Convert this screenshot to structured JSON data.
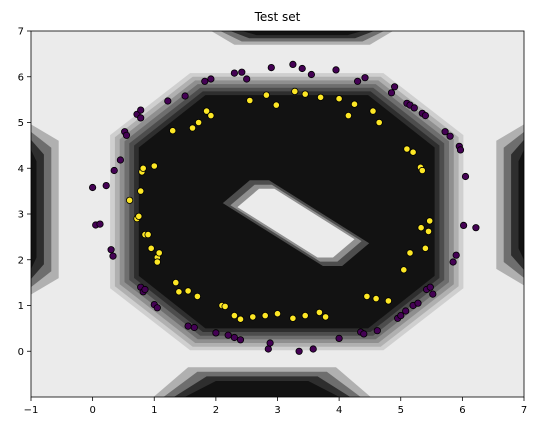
{
  "chart_data": {
    "type": "scatter",
    "title": "Test set",
    "xlabel": "",
    "ylabel": "",
    "xlim": [
      -1,
      7
    ],
    "ylim": [
      -1,
      7
    ],
    "x_ticks": [
      -1,
      0,
      1,
      2,
      3,
      4,
      5,
      6,
      7
    ],
    "y_ticks": [
      0,
      1,
      2,
      3,
      4,
      5,
      6,
      7
    ],
    "grid": false,
    "legend": "none",
    "background": "decision-boundary-contour",
    "colors": {
      "class0": "#440154",
      "class1": "#fde725",
      "contour_levels": [
        "#ebebeb",
        "#cfcfcf",
        "#b0b0b0",
        "#8f8f8f",
        "#6e6e6e",
        "#4d4d4d",
        "#2e2e2e",
        "#121212"
      ]
    },
    "series": [
      {
        "class": 0,
        "points": [
          [
            0.0,
            3.58
          ],
          [
            0.05,
            2.76
          ],
          [
            0.12,
            2.78
          ],
          [
            0.22,
            3.62
          ],
          [
            0.3,
            2.22
          ],
          [
            0.33,
            2.08
          ],
          [
            0.35,
            3.95
          ],
          [
            0.45,
            4.18
          ],
          [
            0.52,
            4.8
          ],
          [
            0.55,
            4.72
          ],
          [
            0.72,
            5.18
          ],
          [
            0.78,
            5.27
          ],
          [
            0.78,
            5.1
          ],
          [
            0.78,
            1.4
          ],
          [
            0.82,
            1.3
          ],
          [
            0.85,
            1.35
          ],
          [
            1.0,
            1.02
          ],
          [
            1.05,
            0.95
          ],
          [
            1.22,
            5.47
          ],
          [
            1.5,
            5.58
          ],
          [
            1.55,
            0.55
          ],
          [
            1.65,
            0.52
          ],
          [
            1.82,
            5.9
          ],
          [
            1.92,
            5.95
          ],
          [
            2.0,
            0.4
          ],
          [
            2.2,
            0.35
          ],
          [
            2.3,
            0.3
          ],
          [
            2.3,
            6.08
          ],
          [
            2.4,
            0.25
          ],
          [
            2.42,
            6.1
          ],
          [
            2.5,
            5.95
          ],
          [
            2.85,
            0.05
          ],
          [
            2.88,
            0.18
          ],
          [
            2.9,
            6.2
          ],
          [
            3.25,
            6.27
          ],
          [
            3.35,
            0.0
          ],
          [
            3.4,
            6.18
          ],
          [
            3.55,
            6.05
          ],
          [
            3.58,
            0.05
          ],
          [
            3.95,
            6.15
          ],
          [
            4.0,
            0.28
          ],
          [
            4.3,
            5.9
          ],
          [
            4.35,
            0.42
          ],
          [
            4.4,
            0.38
          ],
          [
            4.42,
            5.98
          ],
          [
            4.62,
            0.45
          ],
          [
            4.85,
            5.65
          ],
          [
            4.9,
            5.78
          ],
          [
            4.95,
            0.72
          ],
          [
            5.0,
            0.78
          ],
          [
            5.08,
            0.88
          ],
          [
            5.1,
            5.42
          ],
          [
            5.15,
            5.38
          ],
          [
            5.2,
            1.0
          ],
          [
            5.22,
            5.32
          ],
          [
            5.28,
            1.05
          ],
          [
            5.35,
            5.2
          ],
          [
            5.4,
            5.15
          ],
          [
            5.42,
            1.35
          ],
          [
            5.48,
            1.4
          ],
          [
            5.52,
            1.25
          ],
          [
            5.72,
            4.8
          ],
          [
            5.8,
            4.7
          ],
          [
            5.85,
            1.95
          ],
          [
            5.9,
            2.1
          ],
          [
            5.95,
            4.48
          ],
          [
            5.97,
            4.4
          ],
          [
            6.02,
            2.75
          ],
          [
            6.05,
            3.82
          ],
          [
            6.22,
            2.7
          ]
        ]
      },
      {
        "class": 1,
        "points": [
          [
            0.6,
            3.3
          ],
          [
            0.72,
            2.9
          ],
          [
            0.75,
            2.95
          ],
          [
            0.78,
            3.5
          ],
          [
            0.8,
            3.92
          ],
          [
            0.82,
            4.0
          ],
          [
            0.85,
            2.55
          ],
          [
            0.9,
            2.55
          ],
          [
            0.95,
            2.25
          ],
          [
            1.0,
            4.05
          ],
          [
            1.05,
            2.05
          ],
          [
            1.05,
            1.95
          ],
          [
            1.08,
            2.15
          ],
          [
            1.3,
            4.82
          ],
          [
            1.35,
            1.5
          ],
          [
            1.4,
            1.3
          ],
          [
            1.55,
            1.32
          ],
          [
            1.62,
            4.88
          ],
          [
            1.7,
            1.2
          ],
          [
            1.72,
            5.0
          ],
          [
            1.85,
            5.25
          ],
          [
            1.92,
            5.15
          ],
          [
            2.1,
            1.0
          ],
          [
            2.15,
            0.98
          ],
          [
            2.3,
            0.78
          ],
          [
            2.4,
            0.7
          ],
          [
            2.55,
            5.48
          ],
          [
            2.6,
            0.75
          ],
          [
            2.8,
            0.78
          ],
          [
            2.82,
            5.6
          ],
          [
            2.98,
            5.38
          ],
          [
            3.0,
            0.82
          ],
          [
            3.25,
            0.72
          ],
          [
            3.28,
            5.68
          ],
          [
            3.45,
            5.62
          ],
          [
            3.45,
            0.78
          ],
          [
            3.68,
            0.85
          ],
          [
            3.7,
            5.55
          ],
          [
            3.78,
            0.75
          ],
          [
            4.0,
            5.52
          ],
          [
            4.15,
            5.15
          ],
          [
            4.25,
            5.4
          ],
          [
            4.45,
            1.2
          ],
          [
            4.55,
            5.25
          ],
          [
            4.6,
            1.15
          ],
          [
            4.65,
            5.0
          ],
          [
            4.8,
            1.1
          ],
          [
            5.05,
            1.78
          ],
          [
            5.1,
            4.42
          ],
          [
            5.15,
            2.15
          ],
          [
            5.2,
            4.35
          ],
          [
            5.32,
            4.02
          ],
          [
            5.33,
            2.7
          ],
          [
            5.35,
            3.95
          ],
          [
            5.4,
            2.25
          ],
          [
            5.45,
            2.62
          ],
          [
            5.47,
            2.85
          ]
        ]
      }
    ]
  }
}
